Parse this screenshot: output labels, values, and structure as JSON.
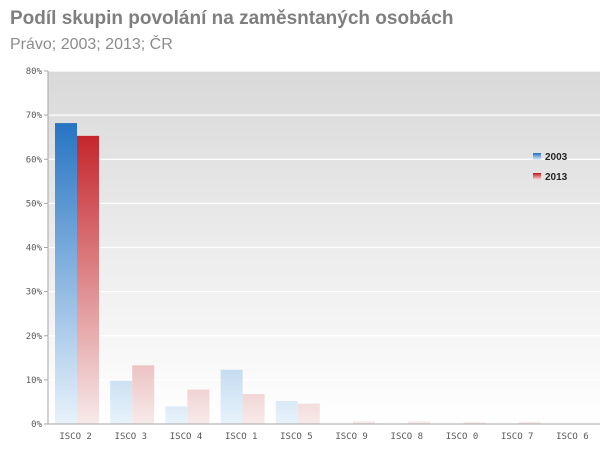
{
  "chart_data": {
    "type": "bar",
    "title": "Podíl skupin povolání na zaměsntaných osobách",
    "subtitle": "Právo; 2003; 2013; ČR",
    "categories": [
      "ISCO 2",
      "ISCO 3",
      "ISCO 4",
      "ISCO 1",
      "ISCO 5",
      "ISCO 9",
      "ISCO 8",
      "ISCO 0",
      "ISCO 7",
      "ISCO 6"
    ],
    "series": [
      {
        "name": "2003",
        "values": [
          68.2,
          9.8,
          4.0,
          12.3,
          5.2,
          0.0,
          0.0,
          0.0,
          0.0,
          0.0
        ],
        "color": "#1f6fc1",
        "color_light": "#e8f3fb"
      },
      {
        "name": "2013",
        "values": [
          65.3,
          13.3,
          7.8,
          6.8,
          4.6,
          0.6,
          0.6,
          0.4,
          0.5,
          0.0
        ],
        "color": "#c0151c",
        "color_light": "#f7eaea"
      }
    ],
    "ylim": [
      0,
      80
    ],
    "yticks": [
      0,
      10,
      20,
      30,
      40,
      50,
      60,
      70,
      80
    ],
    "ytick_labels": [
      "0%",
      "10%",
      "20%",
      "30%",
      "40%",
      "50%",
      "60%",
      "70%",
      "80%"
    ],
    "grid": true,
    "legend_position": "right"
  }
}
